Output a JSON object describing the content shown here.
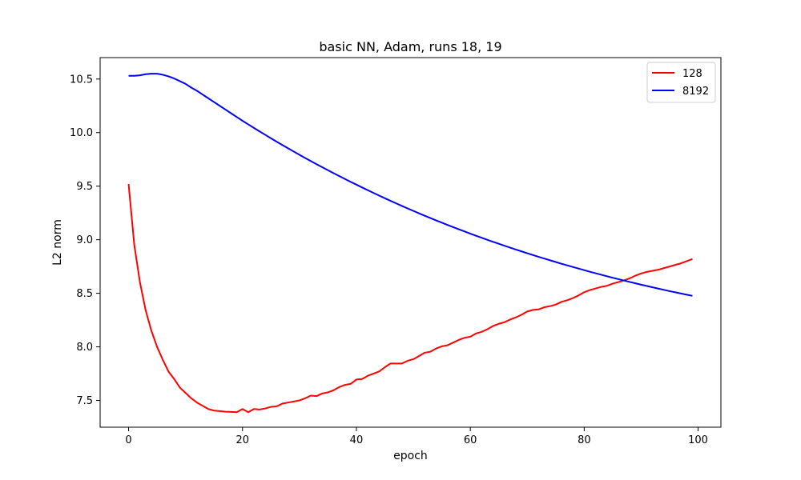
{
  "chart_data": {
    "type": "line",
    "title": "basic NN, Adam, runs 18, 19",
    "xlabel": "epoch",
    "ylabel": "L2 norm",
    "xlim": [
      -5,
      104
    ],
    "ylim": [
      7.25,
      10.7
    ],
    "xticks": [
      0,
      20,
      40,
      60,
      80,
      100
    ],
    "yticks": [
      7.5,
      8.0,
      8.5,
      9.0,
      9.5,
      10.0,
      10.5
    ],
    "ytick_labels": [
      "7.5",
      "8.0",
      "8.5",
      "9.0",
      "9.5",
      "10.0",
      "10.5"
    ],
    "grid": false,
    "legend_position": "top-right",
    "x": [
      0,
      1,
      2,
      3,
      4,
      5,
      6,
      7,
      8,
      9,
      10,
      11,
      12,
      13,
      14,
      15,
      16,
      17,
      18,
      19,
      20,
      21,
      22,
      23,
      24,
      25,
      26,
      27,
      28,
      29,
      30,
      31,
      32,
      33,
      34,
      35,
      36,
      37,
      38,
      39,
      40,
      41,
      42,
      43,
      44,
      45,
      46,
      47,
      48,
      49,
      50,
      51,
      52,
      53,
      54,
      55,
      56,
      57,
      58,
      59,
      60,
      61,
      62,
      63,
      64,
      65,
      66,
      67,
      68,
      69,
      70,
      71,
      72,
      73,
      74,
      75,
      76,
      77,
      78,
      79,
      80,
      81,
      82,
      83,
      84,
      85,
      86,
      87,
      88,
      89,
      90,
      91,
      92,
      93,
      94,
      95,
      96,
      97,
      98,
      99
    ],
    "series": [
      {
        "name": "128",
        "color": "#ff0000",
        "values": [
          9.52,
          8.95,
          8.6,
          8.34,
          8.15,
          8.0,
          7.88,
          7.77,
          7.7,
          7.62,
          7.57,
          7.52,
          7.48,
          7.45,
          7.42,
          7.405,
          7.4,
          7.395,
          7.393,
          7.39,
          7.42,
          7.39,
          7.42,
          7.415,
          7.425,
          7.44,
          7.445,
          7.47,
          7.48,
          7.49,
          7.5,
          7.52,
          7.545,
          7.54,
          7.565,
          7.575,
          7.595,
          7.625,
          7.645,
          7.655,
          7.695,
          7.7,
          7.73,
          7.75,
          7.77,
          7.81,
          7.845,
          7.845,
          7.845,
          7.87,
          7.885,
          7.915,
          7.945,
          7.955,
          7.985,
          8.005,
          8.015,
          8.04,
          8.065,
          8.085,
          8.095,
          8.125,
          8.14,
          8.165,
          8.195,
          8.215,
          8.23,
          8.255,
          8.275,
          8.3,
          8.33,
          8.345,
          8.35,
          8.37,
          8.38,
          8.395,
          8.42,
          8.435,
          8.455,
          8.48,
          8.51,
          8.53,
          8.545,
          8.56,
          8.57,
          8.59,
          8.605,
          8.62,
          8.64,
          8.665,
          8.685,
          8.7,
          8.71,
          8.72,
          8.735,
          8.75,
          8.765,
          8.78,
          8.8,
          8.82
        ]
      },
      {
        "name": "8192",
        "color": "#0000ff",
        "values": [
          10.53,
          10.53,
          10.535,
          10.545,
          10.55,
          10.55,
          10.54,
          10.525,
          10.505,
          10.48,
          10.455,
          10.42,
          10.39,
          10.355,
          10.32,
          10.285,
          10.25,
          10.215,
          10.18,
          10.145,
          10.11,
          10.077,
          10.044,
          10.011,
          9.979,
          9.947,
          9.915,
          9.884,
          9.853,
          9.823,
          9.793,
          9.763,
          9.734,
          9.705,
          9.677,
          9.649,
          9.621,
          9.594,
          9.567,
          9.54,
          9.514,
          9.488,
          9.462,
          9.437,
          9.412,
          9.387,
          9.363,
          9.339,
          9.315,
          9.292,
          9.269,
          9.246,
          9.224,
          9.202,
          9.18,
          9.159,
          9.138,
          9.117,
          9.097,
          9.077,
          9.057,
          9.037,
          9.018,
          8.999,
          8.98,
          8.962,
          8.944,
          8.926,
          8.908,
          8.891,
          8.874,
          8.857,
          8.84,
          8.824,
          8.808,
          8.792,
          8.776,
          8.761,
          8.746,
          8.731,
          8.716,
          8.701,
          8.687,
          8.673,
          8.659,
          8.645,
          8.632,
          8.619,
          8.606,
          8.593,
          8.58,
          8.568,
          8.556,
          8.544,
          8.532,
          8.52,
          8.509,
          8.498,
          8.487,
          8.476
        ]
      }
    ]
  }
}
